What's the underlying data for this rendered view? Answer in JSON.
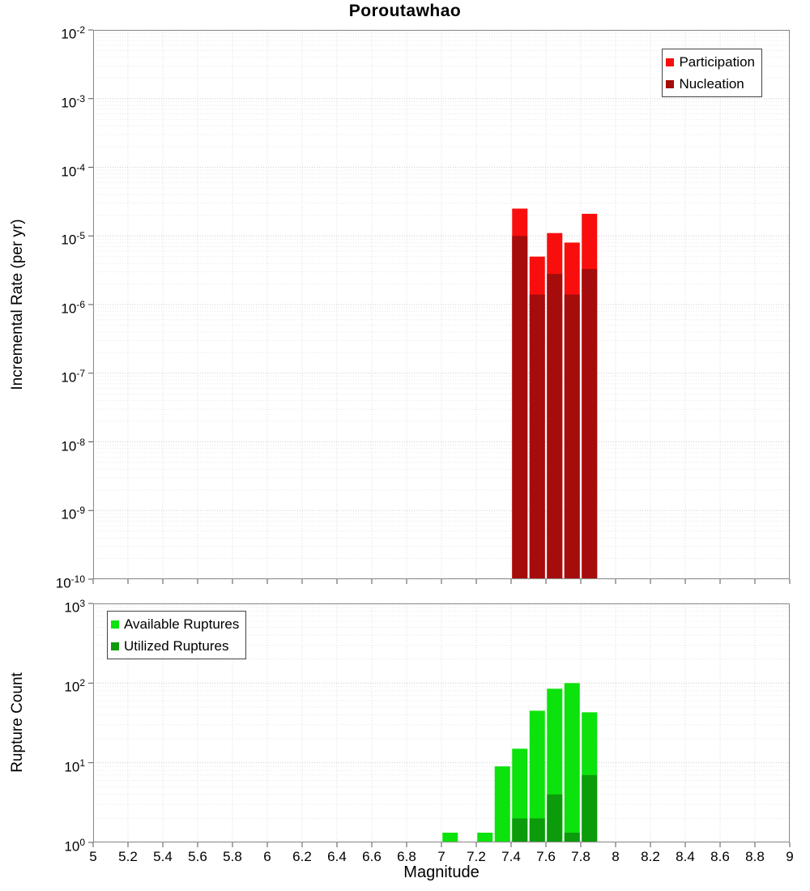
{
  "title": "Poroutawhao",
  "xlabel": "Magnitude",
  "chart_data": [
    {
      "id": "incremental-rate",
      "type": "bar",
      "title": "Poroutawhao",
      "ylabel": "Incremental Rate (per yr)",
      "xlabel": "Magnitude",
      "yscale": "log",
      "ylim": [
        1e-10,
        0.01
      ],
      "xlim": [
        5,
        9
      ],
      "x_tick_step": 0.2,
      "y_tick_exponents": [
        -2,
        -3,
        -4,
        -5,
        -6,
        -7,
        -8,
        -9,
        -10
      ],
      "bin_width": 0.1,
      "grid": true,
      "legend_position": "top-right",
      "series": [
        {
          "name": "Participation",
          "color": "#f90e0e",
          "x": [
            7.45,
            7.55,
            7.65,
            7.75,
            7.85
          ],
          "values": [
            2.5e-05,
            5e-06,
            1.1e-05,
            8e-06,
            2.1e-05
          ]
        },
        {
          "name": "Nucleation",
          "color": "#a60c0c",
          "x": [
            7.45,
            7.55,
            7.65,
            7.75,
            7.85
          ],
          "values": [
            1e-05,
            1.4e-06,
            2.8e-06,
            1.4e-06,
            3.3e-06
          ]
        }
      ]
    },
    {
      "id": "rupture-count",
      "type": "bar",
      "ylabel": "Rupture Count",
      "xlabel": "Magnitude",
      "yscale": "log",
      "ylim": [
        1,
        1000
      ],
      "xlim": [
        5,
        9
      ],
      "x_tick_step": 0.2,
      "y_tick_exponents": [
        3,
        2,
        1,
        0
      ],
      "bin_width": 0.1,
      "grid": true,
      "legend_position": "top-left",
      "series": [
        {
          "name": "Available Ruptures",
          "color": "#0ce20c",
          "x": [
            7.05,
            7.25,
            7.35,
            7.45,
            7.55,
            7.65,
            7.75,
            7.85
          ],
          "values": [
            1,
            1,
            9,
            15,
            45,
            85,
            100,
            43
          ]
        },
        {
          "name": "Utilized Ruptures",
          "color": "#0b9b0b",
          "x": [
            7.45,
            7.55,
            7.65,
            7.75,
            7.85
          ],
          "values": [
            2,
            2,
            4,
            1,
            7
          ]
        }
      ]
    }
  ]
}
